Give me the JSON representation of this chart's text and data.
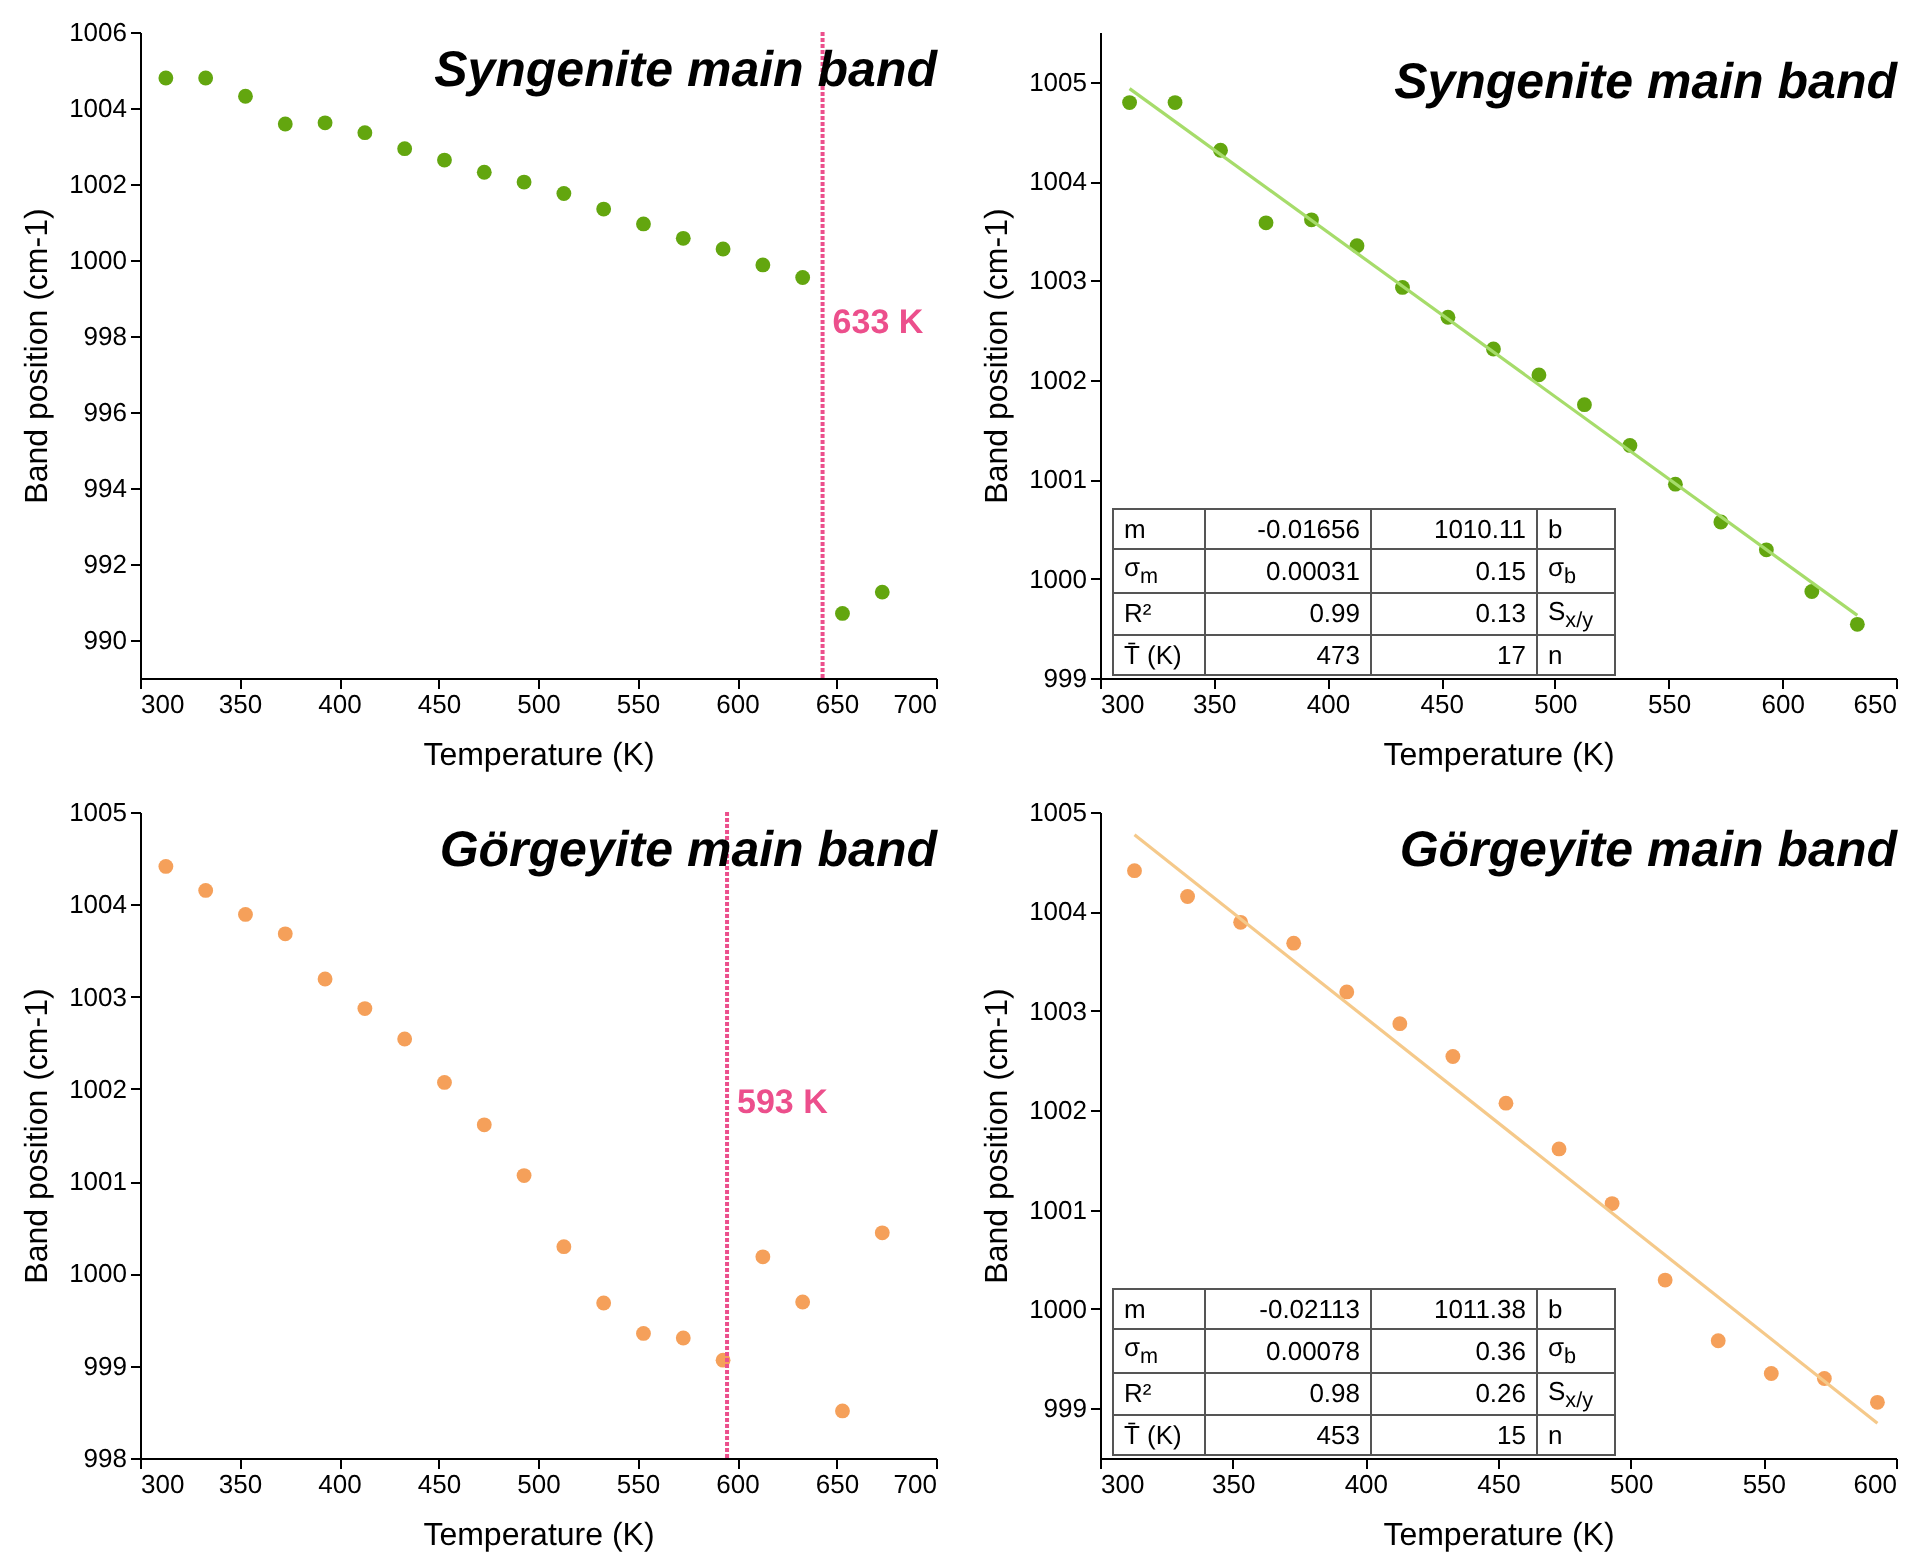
{
  "chart_data": [
    {
      "type": "scatter",
      "title": "Syngenite main band",
      "xlabel": "Temperature (K)",
      "ylabel": "Band position (cm-1)",
      "marker": "circle",
      "xlim": [
        300,
        700
      ],
      "xticks": [
        300,
        350,
        400,
        450,
        500,
        550,
        600,
        650,
        700
      ],
      "ylim": [
        989,
        1006
      ],
      "yticks": [
        990,
        992,
        994,
        996,
        998,
        1000,
        1002,
        1004,
        1006
      ],
      "x": [
        313,
        333,
        353,
        373,
        393,
        413,
        433,
        453,
        473,
        493,
        513,
        533,
        553,
        573,
        593,
        613,
        633,
        653,
        673
      ],
      "series": [
        {
          "color": "#63a60f",
          "values": [
            1004.79,
            1004.79,
            1004.31,
            1003.58,
            1003.61,
            1003.35,
            1002.93,
            1002.63,
            1002.31,
            1002.05,
            1001.75,
            1001.34,
            1000.95,
            1000.57,
            1000.29,
            999.87,
            999.54,
            990.7,
            991.26
          ]
        }
      ],
      "ref_lines": [
        {
          "axis": "x",
          "value": 643,
          "label": "633 K",
          "color": "#ec4f8c",
          "line_style": "dotted"
        }
      ]
    },
    {
      "type": "scatter",
      "title": "Syngenite main band",
      "xlabel": "Temperature (K)",
      "ylabel": "Band position (cm-1)",
      "marker": "circle",
      "xlim": [
        300,
        650
      ],
      "xticks": [
        300,
        350,
        400,
        450,
        500,
        550,
        600,
        650
      ],
      "ylim": [
        999,
        1005.5
      ],
      "yticks": [
        999,
        1000,
        1001,
        1002,
        1003,
        1004,
        1005
      ],
      "x": [
        313,
        333,
        353,
        373,
        393,
        413,
        433,
        453,
        473,
        493,
        513,
        533,
        553,
        573,
        593,
        613,
        633
      ],
      "series": [
        {
          "color": "#63a60f",
          "values": [
            1004.79,
            1004.79,
            1004.31,
            1003.58,
            1003.61,
            1003.35,
            1002.93,
            1002.63,
            1002.31,
            1002.05,
            1001.75,
            1001.34,
            1000.95,
            1000.57,
            1000.29,
            999.87,
            999.54
          ]
        },
        {
          "type": "line",
          "marker": "none",
          "color": "#a6dc6a",
          "x": [
            313,
            633
          ],
          "values": [
            1004.93,
            999.63
          ]
        }
      ],
      "annotations": [
        "m",
        "-0.01656",
        "1010.11",
        "b",
        "σ$_{m}$",
        "0.00031",
        "0.15",
        "σ$_{b}$",
        "R²",
        "0.99",
        "0.13",
        "S$_{x/y}$",
        "T̄ (K)",
        "473",
        "17",
        "n"
      ]
    },
    {
      "type": "scatter",
      "title": "Görgeyite main band",
      "xlabel": "Temperature (K)",
      "ylabel": "Band position (cm-1)",
      "marker": "circle",
      "xlim": [
        300,
        700
      ],
      "xticks": [
        300,
        350,
        400,
        450,
        500,
        550,
        600,
        650,
        700
      ],
      "ylim": [
        998,
        1005
      ],
      "yticks": [
        998,
        999,
        1000,
        1001,
        1002,
        1003,
        1004,
        1005
      ],
      "x": [
        313,
        333,
        353,
        373,
        393,
        413,
        433,
        453,
        473,
        493,
        513,
        533,
        553,
        573,
        593,
        613,
        633,
        653,
        673
      ],
      "series": [
        {
          "color": "#f5a05a",
          "values": [
            1004.41,
            1004.15,
            1003.89,
            1003.68,
            1003.19,
            1002.87,
            1002.54,
            1002.07,
            1001.61,
            1001.06,
            1000.29,
            999.68,
            999.35,
            999.3,
            999.06,
            1000.18,
            999.69,
            998.51,
            1000.44
          ]
        }
      ],
      "ref_lines": [
        {
          "axis": "x",
          "value": 595,
          "label": "593 K",
          "color": "#ec4f8c",
          "line_style": "dotted"
        }
      ]
    },
    {
      "type": "scatter",
      "title": "Görgeyite main band",
      "xlabel": "Temperature (K)",
      "ylabel": "Band position (cm-1)",
      "marker": "circle",
      "xlim": [
        300,
        600
      ],
      "xticks": [
        300,
        350,
        400,
        450,
        500,
        550,
        600
      ],
      "ylim": [
        998.5,
        1005
      ],
      "yticks": [
        999,
        1000,
        1001,
        1002,
        1003,
        1004,
        1005
      ],
      "x": [
        313,
        333,
        353,
        373,
        393,
        413,
        433,
        453,
        473,
        493,
        513,
        533,
        553,
        573,
        593
      ],
      "series": [
        {
          "color": "#f5a05a",
          "values": [
            1004.41,
            1004.15,
            1003.89,
            1003.68,
            1003.19,
            1002.87,
            1002.54,
            1002.07,
            1001.61,
            1001.06,
            1000.29,
            999.68,
            999.35,
            999.3,
            999.06
          ]
        },
        {
          "type": "line",
          "marker": "none",
          "color": "#f5c98a",
          "x": [
            313,
            593
          ],
          "values": [
            1004.77,
            998.85
          ]
        }
      ],
      "annotations": [
        "m",
        "-0.02113",
        "1011.38",
        "b",
        "σ$_{m}$",
        "0.00078",
        "0.36",
        "σ$_{b}$",
        "R²",
        "0.98",
        "0.26",
        "S$_{x/y}$",
        "T̄ (K)",
        "453",
        "15",
        "n"
      ]
    }
  ]
}
